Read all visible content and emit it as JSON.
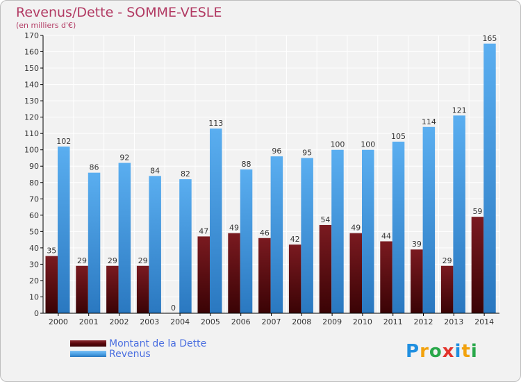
{
  "title": "Revenus/Dette - SOMME-VESLE",
  "subtitle": "(en milliers d'€)",
  "colors": {
    "dette": "#6b0d13",
    "revenus": "#4ea3e6",
    "title": "#b23a63",
    "legend_text": "#4a6ee0"
  },
  "legend": [
    {
      "label": "Montant de la Dette",
      "color": "#6b0d13"
    },
    {
      "label": "Revenus",
      "color": "#4ea3e6"
    }
  ],
  "logo": {
    "text": "Proxiti",
    "letters": [
      "P",
      "r",
      "o",
      "x",
      "i",
      "t",
      "i"
    ],
    "colors": [
      "#1f8fe0",
      "#f2a20d",
      "#29a84a",
      "#e3332b",
      "#1f8fe0",
      "#f2a20d",
      "#29a84a"
    ]
  },
  "chart_data": {
    "type": "bar",
    "title": "Revenus/Dette - SOMME-VESLE",
    "subtitle": "(en milliers d'€)",
    "categories": [
      "2000",
      "2001",
      "2002",
      "2003",
      "2004",
      "2005",
      "2006",
      "2007",
      "2008",
      "2009",
      "2010",
      "2011",
      "2012",
      "2013",
      "2014"
    ],
    "series": [
      {
        "name": "Montant de la Dette",
        "values": [
          35,
          29,
          29,
          29,
          0,
          47,
          49,
          46,
          42,
          54,
          49,
          44,
          39,
          29,
          59
        ]
      },
      {
        "name": "Revenus",
        "values": [
          102,
          86,
          92,
          84,
          82,
          113,
          88,
          96,
          95,
          100,
          100,
          105,
          114,
          121,
          165
        ]
      }
    ],
    "ylim": [
      0,
      170
    ],
    "yticks": [
      0,
      10,
      20,
      30,
      40,
      50,
      60,
      70,
      80,
      90,
      100,
      110,
      120,
      130,
      140,
      150,
      160,
      170
    ],
    "grid": true,
    "legend_position": "bottom-left"
  }
}
